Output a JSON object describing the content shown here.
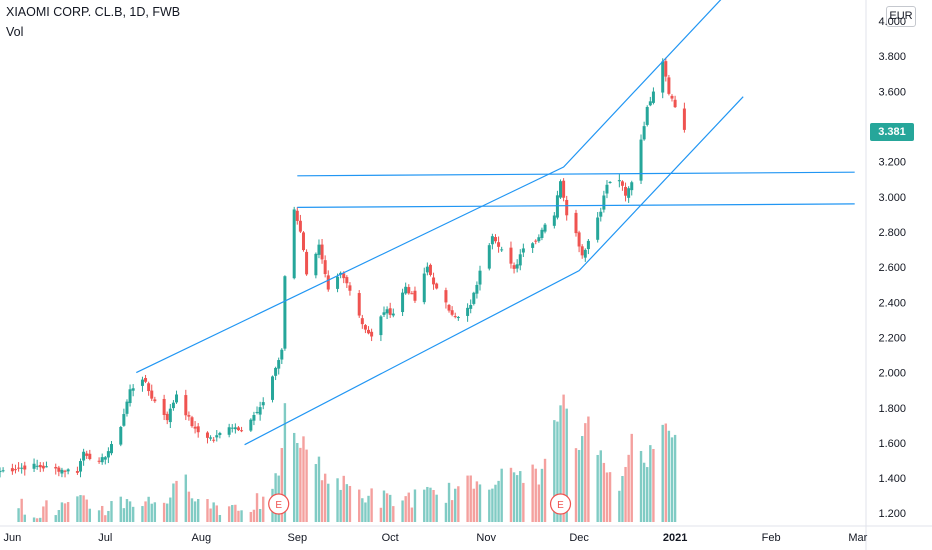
{
  "header": {
    "title": "XIAOMI CORP. CL.B, 1D, FWB",
    "volume_label": "Vol",
    "currency": "EUR"
  },
  "last_price": "3.381",
  "colors": {
    "up": "#26a69a",
    "down": "#ef5350",
    "trendline": "#2196f3",
    "vol_up": "#80cbc4",
    "vol_down": "#f4a09e",
    "axis_text": "#131722",
    "earnings": "#ef5350"
  },
  "earnings_marker": "E",
  "chart_data": {
    "type": "candlestick",
    "ylim": [
      1.15,
      4.12
    ],
    "y_ticks": [
      {
        "v": 4.0,
        "t": "4.000"
      },
      {
        "v": 3.8,
        "t": "3.800"
      },
      {
        "v": 3.6,
        "t": "3.600"
      },
      {
        "v": 3.4,
        "t": "3.400"
      },
      {
        "v": 3.2,
        "t": "3.200"
      },
      {
        "v": 3.0,
        "t": "3.000"
      },
      {
        "v": 2.8,
        "t": "2.800"
      },
      {
        "v": 2.6,
        "t": "2.600"
      },
      {
        "v": 2.4,
        "t": "2.400"
      },
      {
        "v": 2.2,
        "t": "2.200"
      },
      {
        "v": 2.0,
        "t": "2.000"
      },
      {
        "v": 1.8,
        "t": "1.800"
      },
      {
        "v": 1.6,
        "t": "1.600"
      },
      {
        "v": 1.4,
        "t": "1.400"
      },
      {
        "v": 1.2,
        "t": "1.200"
      }
    ],
    "x_ticks": [
      {
        "date": "2020-06-01",
        "label": "Jun"
      },
      {
        "date": "2020-07-01",
        "label": "Jul"
      },
      {
        "date": "2020-08-01",
        "label": "Aug"
      },
      {
        "date": "2020-09-01",
        "label": "Sep"
      },
      {
        "date": "2020-10-01",
        "label": "Oct"
      },
      {
        "date": "2020-11-01",
        "label": "Nov"
      },
      {
        "date": "2020-12-01",
        "label": "Dec"
      },
      {
        "date": "2021-01-01",
        "label": "2021"
      },
      {
        "date": "2021-02-01",
        "label": "Feb"
      },
      {
        "date": "2021-03-01",
        "label": "Mar"
      }
    ],
    "x_range": [
      "2020-05-28",
      "2021-03-03"
    ],
    "trendlines": [
      {
        "name": "upper channel",
        "points": [
          [
            "2020-07-11",
            2.0
          ],
          [
            "2020-11-26",
            3.17
          ],
          [
            "2021-01-21",
            4.22
          ]
        ]
      },
      {
        "name": "lower channel",
        "points": [
          [
            "2020-08-15",
            1.59
          ],
          [
            "2020-12-01",
            2.58
          ],
          [
            "2021-01-23",
            3.57
          ]
        ]
      },
      {
        "name": "resistance 3.12",
        "points": [
          [
            "2020-09-01",
            3.12
          ],
          [
            "2021-02-28",
            3.14
          ]
        ]
      },
      {
        "name": "support 2.94",
        "points": [
          [
            "2020-09-01",
            2.94
          ],
          [
            "2021-02-28",
            2.96
          ]
        ]
      }
    ],
    "earnings_dates": [
      "2020-08-26",
      "2020-11-25"
    ],
    "anchors": [
      [
        "2020-05-28",
        1.43,
        1.44
      ],
      [
        "2020-06-01",
        1.44,
        1.45
      ],
      [
        "2020-06-08",
        1.48,
        1.47
      ],
      [
        "2020-06-15",
        1.46,
        1.45
      ],
      [
        "2020-06-22",
        1.43,
        1.44
      ],
      [
        "2020-06-24",
        1.53,
        1.55
      ],
      [
        "2020-06-29",
        1.49,
        1.48
      ],
      [
        "2020-07-03",
        1.56,
        1.58
      ],
      [
        "2020-07-06",
        1.65,
        1.7
      ],
      [
        "2020-07-09",
        1.88,
        1.9
      ],
      [
        "2020-07-13",
        1.92,
        1.97
      ],
      [
        "2020-07-16",
        1.85,
        1.86
      ],
      [
        "2020-07-21",
        1.72,
        1.74
      ],
      [
        "2020-07-24",
        1.9,
        1.88
      ],
      [
        "2020-07-27",
        1.79,
        1.77
      ],
      [
        "2020-07-30",
        1.66,
        1.67
      ],
      [
        "2020-08-05",
        1.63,
        1.62
      ],
      [
        "2020-08-10",
        1.69,
        1.7
      ],
      [
        "2020-08-14",
        1.68,
        1.68
      ],
      [
        "2020-08-20",
        1.76,
        1.79
      ],
      [
        "2020-08-24",
        1.97,
        1.98
      ],
      [
        "2020-08-27",
        2.06,
        2.12
      ],
      [
        "2020-08-28",
        2.48,
        2.55
      ],
      [
        "2020-08-31",
        2.9,
        2.93
      ],
      [
        "2020-09-02",
        2.8,
        2.81
      ],
      [
        "2020-09-04",
        2.55,
        2.57
      ],
      [
        "2020-09-08",
        2.7,
        2.72
      ],
      [
        "2020-09-11",
        2.48,
        2.46
      ],
      [
        "2020-09-15",
        2.55,
        2.56
      ],
      [
        "2020-09-18",
        2.47,
        2.48
      ],
      [
        "2020-09-22",
        2.3,
        2.28
      ],
      [
        "2020-09-25",
        2.21,
        2.2
      ],
      [
        "2020-09-29",
        2.34,
        2.35
      ],
      [
        "2020-10-02",
        2.33,
        2.34
      ],
      [
        "2020-10-06",
        2.48,
        2.49
      ],
      [
        "2020-10-09",
        2.4,
        2.41
      ],
      [
        "2020-10-13",
        2.58,
        2.6
      ],
      [
        "2020-10-16",
        2.48,
        2.47
      ],
      [
        "2020-10-20",
        2.38,
        2.36
      ],
      [
        "2020-10-23",
        2.33,
        2.31
      ],
      [
        "2020-10-27",
        2.37,
        2.38
      ],
      [
        "2020-10-30",
        2.56,
        2.57
      ],
      [
        "2020-11-03",
        2.77,
        2.79
      ],
      [
        "2020-11-06",
        2.68,
        2.7
      ],
      [
        "2020-11-10",
        2.6,
        2.58
      ],
      [
        "2020-11-13",
        2.71,
        2.72
      ],
      [
        "2020-11-17",
        2.76,
        2.75
      ],
      [
        "2020-11-20",
        2.83,
        2.85
      ],
      [
        "2020-11-23",
        2.88,
        2.9
      ],
      [
        "2020-11-25",
        3.12,
        3.1
      ],
      [
        "2020-11-27",
        2.93,
        2.91
      ],
      [
        "2020-11-30",
        2.8,
        2.79
      ],
      [
        "2020-12-02",
        2.68,
        2.67
      ],
      [
        "2020-12-04",
        2.74,
        2.75
      ],
      [
        "2020-12-08",
        2.91,
        2.93
      ],
      [
        "2020-12-10",
        3.08,
        3.07
      ],
      [
        "2020-12-14",
        3.09,
        3.1
      ],
      [
        "2020-12-16",
        3.02,
        3.0
      ],
      [
        "2020-12-18",
        3.06,
        3.09
      ],
      [
        "2020-12-21",
        3.31,
        3.33
      ],
      [
        "2020-12-23",
        3.48,
        3.5
      ],
      [
        "2020-12-28",
        3.75,
        3.78
      ],
      [
        "2020-12-30",
        3.62,
        3.6
      ],
      [
        "2021-01-04",
        3.39,
        3.381
      ]
    ],
    "volumes": [
      [
        "2020-06-03",
        1.24
      ],
      [
        "2020-06-10",
        1.22
      ],
      [
        "2020-06-17",
        1.23
      ],
      [
        "2020-06-24",
        1.25
      ],
      [
        "2020-07-01",
        1.23
      ],
      [
        "2020-07-08",
        1.28
      ],
      [
        "2020-07-15",
        1.26
      ],
      [
        "2020-07-22",
        1.3
      ],
      [
        "2020-07-27",
        1.38
      ],
      [
        "2020-08-03",
        1.25
      ],
      [
        "2020-08-10",
        1.24
      ],
      [
        "2020-08-17",
        1.25
      ],
      [
        "2020-08-24",
        1.28
      ],
      [
        "2020-08-27",
        1.55
      ],
      [
        "2020-08-28",
        1.78
      ],
      [
        "2020-08-31",
        1.63
      ],
      [
        "2020-09-04",
        1.58
      ],
      [
        "2020-09-10",
        1.42
      ],
      [
        "2020-09-17",
        1.35
      ],
      [
        "2020-09-24",
        1.3
      ],
      [
        "2020-10-01",
        1.27
      ],
      [
        "2020-10-08",
        1.29
      ],
      [
        "2020-10-15",
        1.3
      ],
      [
        "2020-10-22",
        1.33
      ],
      [
        "2020-10-29",
        1.38
      ],
      [
        "2020-11-05",
        1.4
      ],
      [
        "2020-11-12",
        1.43
      ],
      [
        "2020-11-19",
        1.42
      ],
      [
        "2020-11-24",
        1.75
      ],
      [
        "2020-11-26",
        1.82
      ],
      [
        "2020-12-01",
        1.55
      ],
      [
        "2020-12-04",
        1.8
      ],
      [
        "2020-12-09",
        1.45
      ],
      [
        "2020-12-14",
        1.38
      ],
      [
        "2020-12-18",
        1.63
      ],
      [
        "2020-12-22",
        1.48
      ],
      [
        "2020-12-28",
        1.66
      ],
      [
        "2020-12-30",
        1.7
      ],
      [
        "2021-01-04",
        1.5
      ]
    ]
  }
}
